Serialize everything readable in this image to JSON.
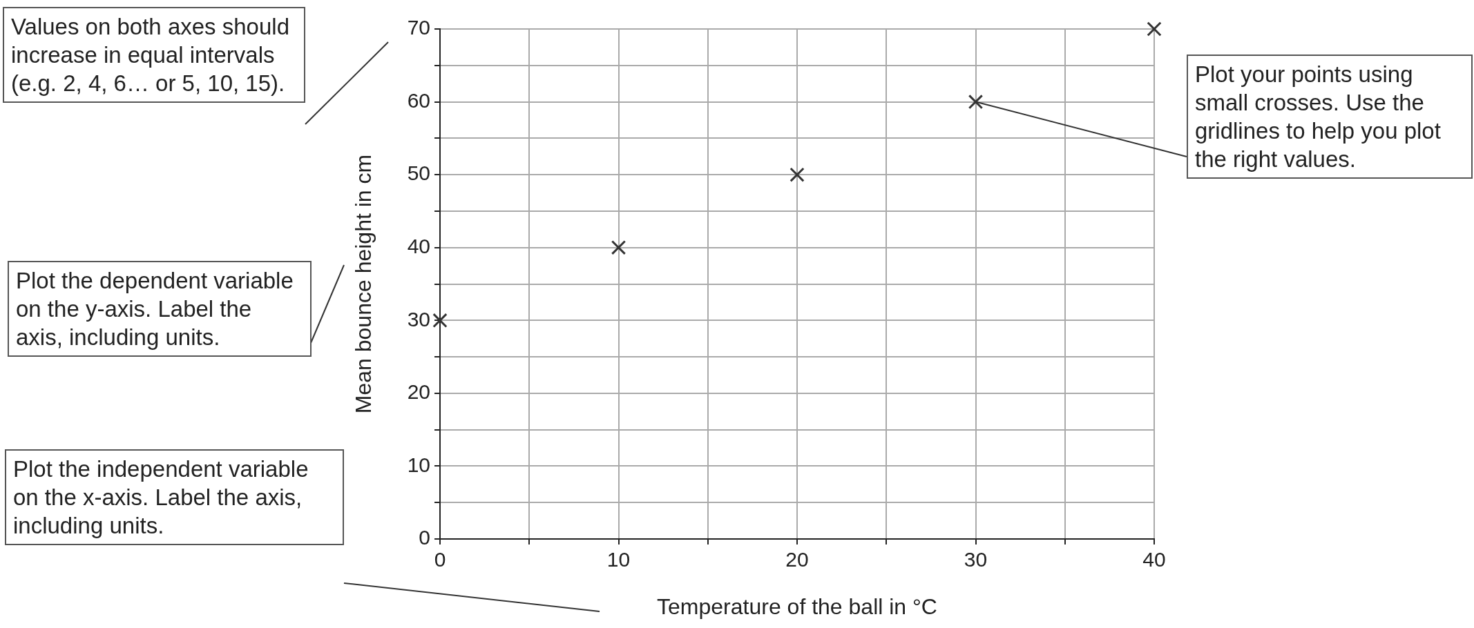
{
  "chart_data": {
    "type": "scatter",
    "xlabel": "Temperature of the ball in °C",
    "ylabel": "Mean bounce height in cm",
    "x": [
      0,
      10,
      20,
      30,
      40
    ],
    "values": [
      30,
      40,
      50,
      60,
      70
    ],
    "color": "#333333",
    "marker": "cross",
    "xlim": [
      0,
      40
    ],
    "xticks": [
      0,
      {
        "value": 5,
        "label": null
      },
      10,
      {
        "value": 15,
        "label": null
      },
      20,
      {
        "value": 25,
        "label": null
      },
      30,
      {
        "value": 35,
        "label": null
      },
      40
    ],
    "ylim": [
      0,
      70
    ],
    "yticks": [
      0,
      {
        "value": 5,
        "label": null
      },
      10,
      {
        "value": 15,
        "label": null
      },
      20,
      {
        "value": 25,
        "label": null
      },
      30,
      {
        "value": 35,
        "label": null
      },
      40,
      {
        "value": 45,
        "label": null
      },
      50,
      {
        "value": 55,
        "label": null
      },
      60,
      {
        "value": 65,
        "label": null
      },
      70
    ],
    "grid": true,
    "legend": false,
    "annotations": [
      "Values on both axes should increase in equal intervals (e.g. 2, 4, 6… or 5, 10, 15).",
      "Plot the dependent variable on the y-axis. Label the axis, including units.",
      "Plot the independent variable on the x-axis. Label the axis, including units.",
      {
        "text": "Plot your points using small crosses. Use the gridlines to help you plot the right values.",
        "x": 30,
        "y": 60
      }
    ]
  }
}
